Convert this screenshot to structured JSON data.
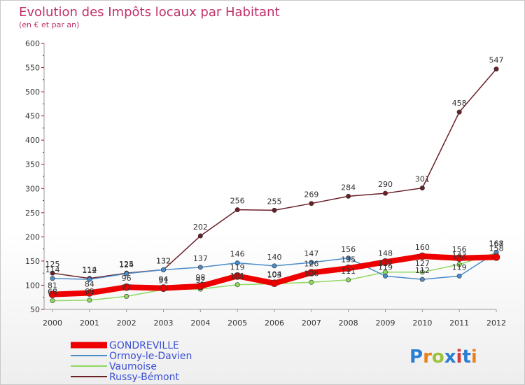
{
  "title": "Evolution des Impôts locaux par Habitant",
  "subtitle": "(en € et par an)",
  "brand": "Proxiti",
  "brand_colors": [
    "#2a7fd4",
    "#e8821e",
    "#9bc43a",
    "#2a7fd4",
    "#d23c3c",
    "#2a7fd4",
    "#e8821e"
  ],
  "chart_data": {
    "type": "line",
    "title": "Evolution des Impôts locaux par Habitant",
    "subtitle": "(en € et par an)",
    "xlabel": "",
    "ylabel": "",
    "ylim": [
      50,
      600
    ],
    "yticks": [
      50,
      100,
      150,
      200,
      250,
      300,
      350,
      400,
      450,
      500,
      550,
      600
    ],
    "grid": false,
    "legend_position": "bottom-left",
    "x": [
      "2000",
      "2001",
      "2002",
      "2003",
      "2004",
      "2005",
      "2006",
      "2007",
      "2008",
      "2009",
      "2010",
      "2011",
      "2012"
    ],
    "series": [
      {
        "name": "GONDREVILLE",
        "color": "#ee0000",
        "values": [
          81,
          84,
          96,
          94,
          98,
          119,
          104,
          126,
          135,
          148,
          160,
          156,
          158
        ],
        "labels": [
          "81",
          "84",
          "96",
          "94",
          "98",
          "119",
          "104",
          "126",
          "135",
          "148",
          "160",
          "156",
          "158"
        ]
      },
      {
        "name": "Ormoy-le-Davien",
        "color": "#4a8cc8",
        "values": [
          114,
          112,
          124,
          132,
          137,
          146,
          140,
          147,
          156,
          119,
          112,
          119,
          168
        ],
        "labels": [
          "114",
          "112",
          "124",
          "132",
          "137",
          "146",
          "140",
          "147",
          "156",
          "119",
          "112",
          "119",
          "168"
        ]
      },
      {
        "name": "Vaumoise",
        "color": "#90d860",
        "values": [
          68,
          69,
          77,
          91,
          92,
          101,
          103,
          106,
          111,
          127,
          127,
          143,
          167
        ],
        "labels": [
          "68",
          "69",
          "77",
          "91",
          "92",
          "101",
          "103",
          "106",
          "111",
          "127",
          "127",
          "143",
          "167"
        ]
      },
      {
        "name": "Russy-Bémont",
        "color": "#6b1f28",
        "values": [
          125,
          114,
          125,
          132,
          202,
          256,
          255,
          269,
          284,
          290,
          301,
          458,
          547
        ],
        "labels": [
          "125",
          "114",
          "125",
          "132",
          "202",
          "256",
          "255",
          "269",
          "284",
          "290",
          "301",
          "458",
          "547"
        ]
      }
    ]
  }
}
